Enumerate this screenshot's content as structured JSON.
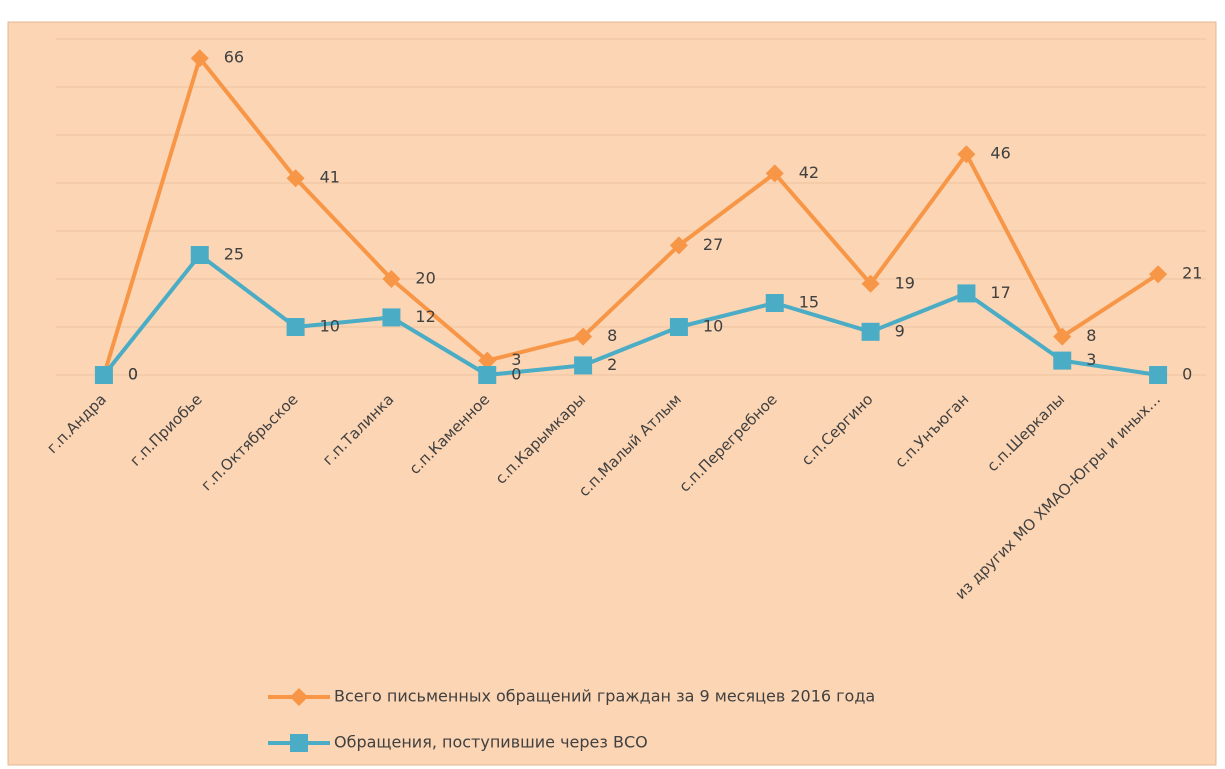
{
  "chart_data": {
    "type": "line",
    "categories": [
      "г.п.Андра",
      "г.п.Приобье",
      "г.п.Октябрьское",
      "г.п.Талинка",
      "с.п.Каменное",
      "с.п.Карымкары",
      "с.п.Малый Атлым",
      "с.п.Перегребное",
      "с.п.Сергино",
      "с.п.Унъюган",
      "с.п.Шеркалы",
      "из других МО ХМАО-Югры и иных…"
    ],
    "series": [
      {
        "name": "Всего письменных обращений граждан за 9 месяцев 2016 года",
        "color": "#f79646",
        "marker": "diamond",
        "values": [
          0,
          66,
          41,
          20,
          3,
          8,
          27,
          42,
          19,
          46,
          8,
          21
        ]
      },
      {
        "name": "Обращения, поступившие через ВСО",
        "color": "#4bacc6",
        "marker": "square",
        "values": [
          0,
          25,
          10,
          12,
          0,
          2,
          10,
          15,
          9,
          17,
          3,
          0
        ]
      }
    ],
    "ylim": [
      0,
      70
    ],
    "yticks": [
      0,
      10,
      20,
      30,
      40,
      50,
      60,
      70
    ],
    "grid": true,
    "legend": "bottom"
  }
}
